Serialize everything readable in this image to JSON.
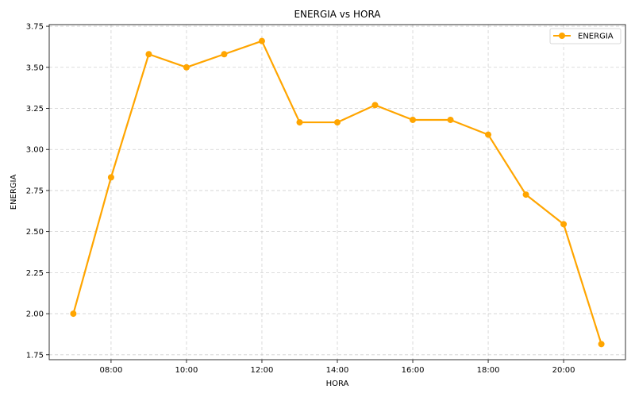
{
  "chart_data": {
    "type": "line",
    "title": "ENERGIA vs HORA",
    "xlabel": "HORA",
    "ylabel": "ENERGIA",
    "xlim": [
      6.36,
      21.64
    ],
    "ylim": [
      1.72,
      3.76
    ],
    "x": [
      7,
      8,
      9,
      10,
      11,
      12,
      13,
      14,
      15,
      16,
      17,
      18,
      19,
      20,
      21
    ],
    "x_ticks": [
      8,
      10,
      12,
      14,
      16,
      18,
      20
    ],
    "x_tick_labels": [
      "08:00",
      "10:00",
      "12:00",
      "14:00",
      "16:00",
      "18:00",
      "20:00"
    ],
    "y_ticks": [
      1.75,
      2.0,
      2.25,
      2.5,
      2.75,
      3.0,
      3.25,
      3.5,
      3.75
    ],
    "y_tick_labels": [
      "1.75",
      "2.00",
      "2.25",
      "2.50",
      "2.75",
      "3.00",
      "3.25",
      "3.50",
      "3.75"
    ],
    "grid": true,
    "legend_position": "top-right",
    "series": [
      {
        "name": "ENERGIA",
        "color": "#FFA500",
        "marker": "circle",
        "values": [
          2.0,
          2.83,
          3.58,
          3.5,
          3.58,
          3.66,
          3.165,
          3.165,
          3.27,
          3.18,
          3.18,
          3.09,
          2.725,
          2.545,
          1.815
        ]
      }
    ]
  }
}
